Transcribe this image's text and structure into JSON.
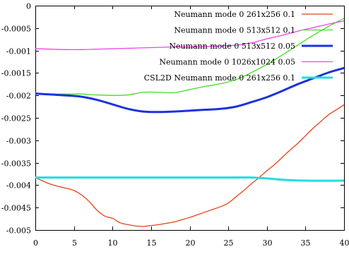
{
  "chart_data": {
    "type": "line",
    "title": "",
    "xlabel": "",
    "ylabel": "",
    "xlim": [
      0,
      40
    ],
    "ylim": [
      -0.005,
      0
    ],
    "x_ticks": [
      0,
      5,
      10,
      15,
      20,
      25,
      30,
      35,
      40
    ],
    "y_ticks": [
      0,
      -0.0005,
      -0.001,
      -0.0015,
      -0.002,
      -0.0025,
      -0.003,
      -0.0035,
      -0.004,
      -0.0045,
      -0.005
    ],
    "x_tick_labels": [
      "0",
      "5",
      "10",
      "15",
      "20",
      "25",
      "30",
      "35",
      "40"
    ],
    "y_tick_labels": [
      "0",
      "-0.0005",
      "-0.001",
      "-0.0015",
      "-0.002",
      "-0.0025",
      "-0.003",
      "-0.0035",
      "-0.004",
      "-0.0045",
      "-0.005"
    ],
    "grid": false,
    "legend_position": "top-right",
    "series": [
      {
        "name": "Neumann mode 0 261x256 0.1",
        "color": "#e8421b",
        "width": "thin",
        "x": [
          0,
          1,
          2,
          3,
          4,
          5,
          6,
          7,
          8,
          9,
          10,
          11,
          12,
          13,
          14,
          15,
          16,
          17,
          18,
          19,
          20,
          21,
          22,
          23,
          24,
          25,
          26,
          27,
          28,
          29,
          30,
          31,
          32,
          33,
          34,
          35,
          36,
          37,
          38,
          39,
          40
        ],
        "y": [
          -0.00383,
          -0.00391,
          -0.00398,
          -0.00403,
          -0.00407,
          -0.00412,
          -0.00422,
          -0.00437,
          -0.00456,
          -0.00469,
          -0.00474,
          -0.00484,
          -0.00488,
          -0.00491,
          -0.00492,
          -0.0049,
          -0.00488,
          -0.00485,
          -0.00482,
          -0.00477,
          -0.00472,
          -0.00466,
          -0.0046,
          -0.00454,
          -0.00448,
          -0.0044,
          -0.00426,
          -0.00412,
          -0.00397,
          -0.00383,
          -0.00368,
          -0.00354,
          -0.00338,
          -0.00322,
          -0.00307,
          -0.0029,
          -0.00273,
          -0.00258,
          -0.00243,
          -0.00232,
          -0.00221
        ]
      },
      {
        "name": "Neumann mode 0 513x512 0.1",
        "color": "#44dd22",
        "width": "thin",
        "x": [
          0,
          2,
          4,
          6,
          8,
          10,
          12,
          14,
          16,
          18,
          20,
          22,
          24,
          26,
          28,
          30,
          32,
          34,
          36,
          38,
          40
        ],
        "y": [
          -0.00195,
          -0.00197,
          -0.00197,
          -0.00197,
          -0.00199,
          -0.002,
          -0.00199,
          -0.00193,
          -0.00193,
          -0.00194,
          -0.00187,
          -0.0018,
          -0.00174,
          -0.00165,
          -0.00149,
          -0.00131,
          -0.0011,
          -0.00088,
          -0.00066,
          -0.00046,
          -0.00028
        ]
      },
      {
        "name": "Neumann mode 0 513x512 0.05",
        "color": "#1a33dd",
        "width": "thick",
        "x": [
          0,
          2,
          4,
          6,
          8,
          10,
          12,
          14,
          16,
          18,
          20,
          22,
          24,
          26,
          28,
          30,
          32,
          34,
          36,
          38,
          40
        ],
        "y": [
          -0.00196,
          -0.00198,
          -0.002,
          -0.00203,
          -0.0021,
          -0.0022,
          -0.0023,
          -0.00236,
          -0.00237,
          -0.00236,
          -0.00234,
          -0.00232,
          -0.0023,
          -0.00225,
          -0.00215,
          -0.00204,
          -0.0019,
          -0.00175,
          -0.00162,
          -0.00149,
          -0.00139
        ]
      },
      {
        "name": "Neumann mode 0 1026x1024 0.05",
        "color": "#ee44ee",
        "width": "thin",
        "x": [
          0,
          2,
          4,
          6,
          8,
          10,
          12,
          14,
          16,
          18,
          20,
          22,
          24,
          26,
          28,
          30,
          32,
          34,
          36,
          38,
          40
        ],
        "y": [
          -0.00096,
          -0.00097,
          -0.00098,
          -0.00098,
          -0.00097,
          -0.00096,
          -0.00095,
          -0.00094,
          -0.00093,
          -0.00092,
          -0.00092,
          -0.00091,
          -0.0009,
          -0.00088,
          -0.00083,
          -0.00074,
          -0.00066,
          -0.00057,
          -0.00049,
          -0.00041,
          -0.00034
        ]
      },
      {
        "name": "CSL2D Neumann mode 0 261x256 0.1",
        "color": "#22dddd",
        "width": "thick",
        "x": [
          0,
          5,
          10,
          15,
          20,
          25,
          28,
          30,
          32,
          35,
          40
        ],
        "y": [
          -0.00383,
          -0.00383,
          -0.00383,
          -0.00383,
          -0.00383,
          -0.00383,
          -0.00383,
          -0.00385,
          -0.00388,
          -0.0039,
          -0.0039
        ]
      }
    ]
  }
}
